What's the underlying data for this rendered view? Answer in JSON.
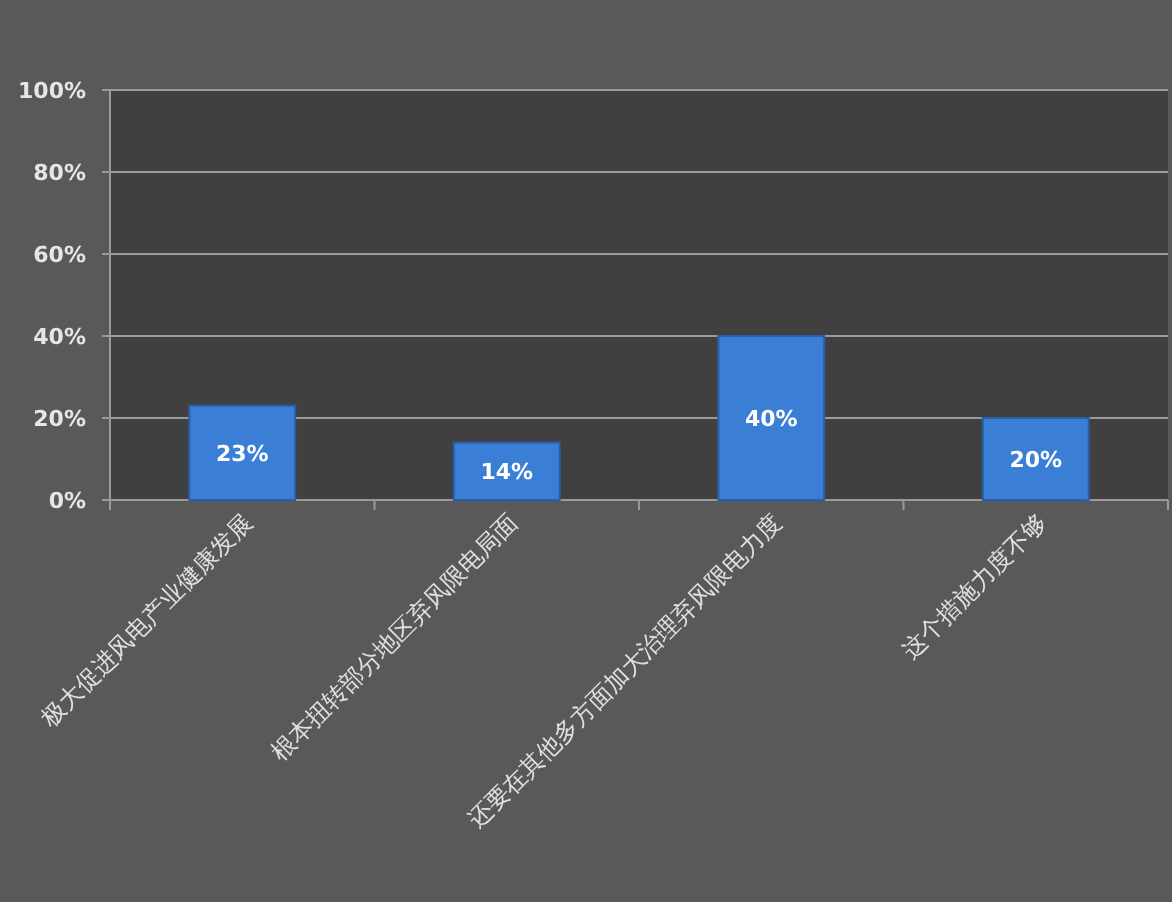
{
  "chart_data": {
    "type": "bar",
    "categories": [
      "极大促进风电产业健康发展",
      "根本扭转部分地区弃风限电局面",
      "还要在其他多方面加大治理弃风限电力度",
      "这个措施力度不够"
    ],
    "values": [
      23,
      14,
      40,
      20
    ],
    "value_labels": [
      "23%",
      "14%",
      "40%",
      "20%"
    ],
    "color": "#3a7fd5",
    "ylim": [
      0,
      100
    ],
    "yticks": [
      {
        "value": 0,
        "label": "0%"
      },
      {
        "value": 20,
        "label": "20%"
      },
      {
        "value": 40,
        "label": "40%"
      },
      {
        "value": 60,
        "label": "60%"
      },
      {
        "value": 80,
        "label": "80%"
      },
      {
        "value": 100,
        "label": "100%"
      }
    ],
    "grid": "y"
  }
}
